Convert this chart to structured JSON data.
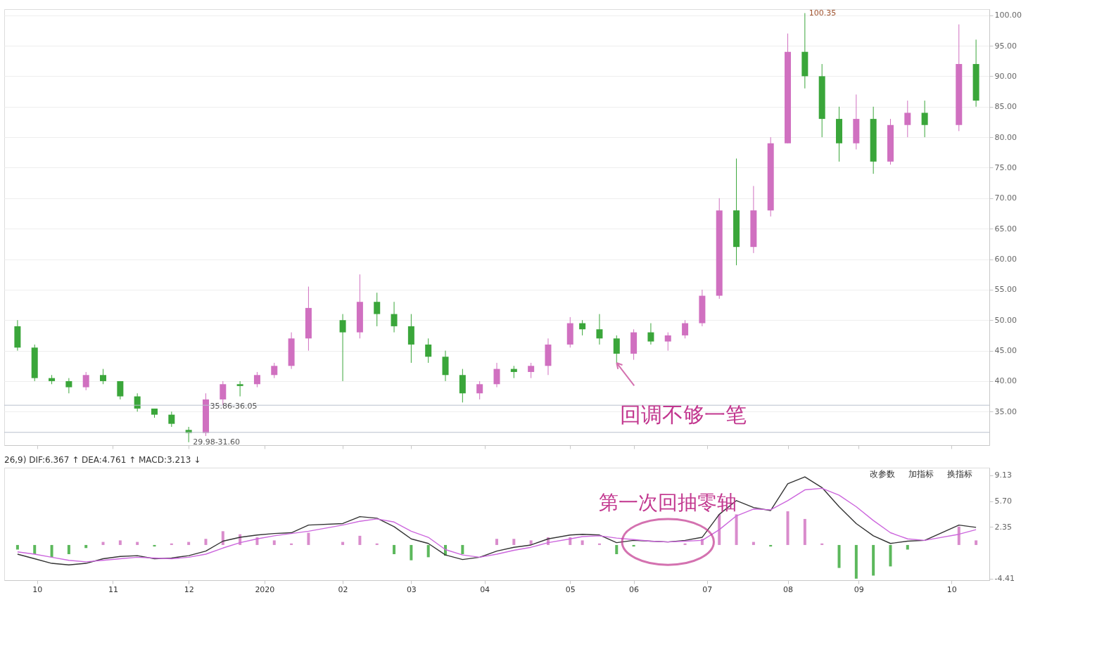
{
  "chart_data": [
    {
      "type": "candlestick",
      "tick_labels": "y",
      "grid": "y",
      "xlim": [
        "2019-09-19",
        "2020-10-23"
      ],
      "xticks": [
        {
          "value": "2019-10-01",
          "label": null
        },
        {
          "value": "2019-11-01",
          "label": null
        },
        {
          "value": "2019-12-02",
          "label": null
        },
        {
          "value": "2020-01-02",
          "label": null
        },
        {
          "value": "2020-02-03",
          "label": null
        },
        {
          "value": "2020-03-02",
          "label": null
        },
        {
          "value": "2020-04-01",
          "label": null
        },
        {
          "value": "2020-05-06",
          "label": null
        },
        {
          "value": "2020-06-01",
          "label": null
        },
        {
          "value": "2020-07-01",
          "label": null
        },
        {
          "value": "2020-08-03",
          "label": null
        },
        {
          "value": "2020-09-01",
          "label": null
        },
        {
          "value": "2020-10-09",
          "label": null
        }
      ],
      "ylim": [
        29.5,
        101
      ],
      "yticks": [
        {
          "value": 35,
          "label": "35.00"
        },
        {
          "value": 40,
          "label": "40.00"
        },
        {
          "value": 45,
          "label": "45.00"
        },
        {
          "value": 50,
          "label": "50.00"
        },
        {
          "value": 55,
          "label": "55.00"
        },
        {
          "value": 60,
          "label": "60.00"
        },
        {
          "value": 65,
          "label": "65.00"
        },
        {
          "value": 70,
          "label": "70.00"
        },
        {
          "value": 75,
          "label": "75.00"
        },
        {
          "value": 80,
          "label": "80.00"
        },
        {
          "value": 85,
          "label": "85.00"
        },
        {
          "value": 90,
          "label": "90.00"
        },
        {
          "value": 95,
          "label": "95.00"
        },
        {
          "value": 100,
          "label": "100.00"
        }
      ],
      "ref_lines": [
        {
          "axis": "y",
          "value": 36.05,
          "color": "#b8c0cc"
        },
        {
          "axis": "y",
          "value": 31.6,
          "color": "#b8c0cc"
        }
      ],
      "annotations": [
        {
          "text": "100.35",
          "x": "2020-08-10",
          "y": 100.35
        },
        {
          "text": "35.86-36.05",
          "x": "2019-12-09",
          "y": 35.86
        },
        {
          "text": "29.98-31.60",
          "x": "2019-12-02",
          "y": 29.98
        },
        {
          "text": "回调不够一笔",
          "x": "2020-05-25",
          "y": 43
        }
      ],
      "series": [
        {
          "x": [
            "2019-09-23",
            "2019-09-30",
            "2019-10-07",
            "2019-10-14",
            "2019-10-21",
            "2019-10-28",
            "2019-11-04",
            "2019-11-11",
            "2019-11-18",
            "2019-11-25",
            "2019-12-02",
            "2019-12-09",
            "2019-12-16",
            "2019-12-23",
            "2019-12-30",
            "2020-01-06",
            "2020-01-13",
            "2020-01-20",
            "2020-02-03",
            "2020-02-10",
            "2020-02-17",
            "2020-02-24",
            "2020-03-02",
            "2020-03-09",
            "2020-03-16",
            "2020-03-23",
            "2020-03-30",
            "2020-04-06",
            "2020-04-13",
            "2020-04-20",
            "2020-04-27",
            "2020-05-06",
            "2020-05-11",
            "2020-05-18",
            "2020-05-25",
            "2020-06-01",
            "2020-06-08",
            "2020-06-15",
            "2020-06-22",
            "2020-06-29",
            "2020-07-06",
            "2020-07-13",
            "2020-07-20",
            "2020-07-27",
            "2020-08-03",
            "2020-08-10",
            "2020-08-17",
            "2020-08-24",
            "2020-08-31",
            "2020-09-07",
            "2020-09-14",
            "2020-09-21",
            "2020-09-28",
            "2020-10-12",
            "2020-10-19"
          ],
          "ohlc": [
            [
              49,
              50,
              45,
              45.5
            ],
            [
              45.5,
              46,
              40,
              40.5
            ],
            [
              40.5,
              41,
              39.5,
              40
            ],
            [
              40,
              40.5,
              38,
              39
            ],
            [
              39,
              41.5,
              38.5,
              41
            ],
            [
              41,
              42,
              39.5,
              40
            ],
            [
              40,
              40,
              37,
              37.5
            ],
            [
              37.5,
              38,
              35,
              35.5
            ],
            [
              35.5,
              35.5,
              34,
              34.5
            ],
            [
              34.5,
              35,
              32.5,
              33
            ],
            [
              32,
              32.5,
              29.98,
              31.5
            ],
            [
              31.5,
              38,
              31,
              37
            ],
            [
              37,
              40,
              36,
              39.5
            ],
            [
              39.5,
              40,
              37.5,
              39.2
            ],
            [
              39.5,
              41.5,
              39,
              41
            ],
            [
              41,
              43,
              40.5,
              42.5
            ],
            [
              42.5,
              48,
              42,
              47
            ],
            [
              47,
              55.5,
              45,
              52
            ],
            [
              50,
              51,
              40,
              48
            ],
            [
              48,
              57.5,
              47,
              53
            ],
            [
              53,
              54.5,
              49,
              51
            ],
            [
              51,
              53,
              48,
              49
            ],
            [
              49,
              51,
              43,
              46
            ],
            [
              46,
              47,
              43,
              44
            ],
            [
              44,
              45,
              40,
              41
            ],
            [
              41,
              42,
              36.5,
              38
            ],
            [
              38,
              40,
              37,
              39.5
            ],
            [
              39.5,
              43,
              39,
              42
            ],
            [
              42,
              42.5,
              40.5,
              41.5
            ],
            [
              41.5,
              43,
              40.5,
              42.5
            ],
            [
              42.5,
              47,
              41,
              46
            ],
            [
              46,
              50.5,
              45.5,
              49.5
            ],
            [
              49.5,
              50,
              47.5,
              48.5
            ],
            [
              48.5,
              51,
              46,
              47
            ],
            [
              47,
              47.5,
              43,
              44.5
            ],
            [
              44.5,
              48.5,
              43.5,
              48
            ],
            [
              48,
              49.5,
              46,
              46.5
            ],
            [
              46.5,
              48,
              45,
              47.5
            ],
            [
              47.5,
              50,
              47,
              49.5
            ],
            [
              49.5,
              55,
              49,
              54
            ],
            [
              54,
              70,
              53.5,
              68
            ],
            [
              68,
              76.5,
              59,
              62
            ],
            [
              62,
              72,
              61,
              68
            ],
            [
              68,
              80,
              67,
              79
            ],
            [
              79,
              97,
              79,
              94
            ],
            [
              94,
              100.35,
              88,
              90
            ],
            [
              90,
              92,
              80,
              83
            ],
            [
              83,
              85,
              76,
              79
            ],
            [
              79,
              87,
              78,
              83
            ],
            [
              83,
              85,
              74,
              76
            ],
            [
              76,
              83,
              75.5,
              82
            ],
            [
              82,
              86,
              80,
              84
            ],
            [
              84,
              86,
              80,
              82
            ],
            [
              82,
              98.5,
              81,
              92
            ],
            [
              92,
              96,
              85,
              86
            ]
          ],
          "colors": [
            "#3aa63a",
            "#3aa63a",
            "#3aa63a",
            "#3aa63a",
            "#d070c0",
            "#3aa63a",
            "#3aa63a",
            "#3aa63a",
            "#3aa63a",
            "#3aa63a",
            "#3aa63a",
            "#d070c0",
            "#d070c0",
            "#3aa63a",
            "#d070c0",
            "#d070c0",
            "#d070c0",
            "#d070c0",
            "#3aa63a",
            "#d070c0",
            "#3aa63a",
            "#3aa63a",
            "#3aa63a",
            "#3aa63a",
            "#3aa63a",
            "#3aa63a",
            "#d070c0",
            "#d070c0",
            "#3aa63a",
            "#d070c0",
            "#d070c0",
            "#d070c0",
            "#3aa63a",
            "#3aa63a",
            "#3aa63a",
            "#d070c0",
            "#3aa63a",
            "#d070c0",
            "#d070c0",
            "#d070c0",
            "#d070c0",
            "#3aa63a",
            "#d070c0",
            "#d070c0",
            "#d070c0",
            "#3aa63a",
            "#3aa63a",
            "#3aa63a",
            "#d070c0",
            "#3aa63a",
            "#d070c0",
            "#d070c0",
            "#3aa63a",
            "#d070c0",
            "#3aa63a"
          ]
        }
      ]
    },
    {
      "type": "line",
      "title": "26,9) DIF:6.367 ↑ DEA:4.761 ↑ MACD:3.213 ↓",
      "marker": "none",
      "line_style": "solid",
      "x": [
        "2019-09-23",
        "2019-09-30",
        "2019-10-07",
        "2019-10-14",
        "2019-10-21",
        "2019-10-28",
        "2019-11-04",
        "2019-11-11",
        "2019-11-18",
        "2019-11-25",
        "2019-12-02",
        "2019-12-09",
        "2019-12-16",
        "2019-12-23",
        "2019-12-30",
        "2020-01-06",
        "2020-01-13",
        "2020-01-20",
        "2020-02-03",
        "2020-02-10",
        "2020-02-17",
        "2020-02-24",
        "2020-03-02",
        "2020-03-09",
        "2020-03-16",
        "2020-03-23",
        "2020-03-30",
        "2020-04-06",
        "2020-04-13",
        "2020-04-20",
        "2020-04-27",
        "2020-05-06",
        "2020-05-11",
        "2020-05-18",
        "2020-05-25",
        "2020-06-01",
        "2020-06-08",
        "2020-06-15",
        "2020-06-22",
        "2020-06-29",
        "2020-07-06",
        "2020-07-13",
        "2020-07-20",
        "2020-07-27",
        "2020-08-03",
        "2020-08-10",
        "2020-08-17",
        "2020-08-24",
        "2020-08-31",
        "2020-09-07",
        "2020-09-14",
        "2020-09-21",
        "2020-09-28",
        "2020-10-12",
        "2020-10-19"
      ],
      "xlim": [
        "2019-09-19",
        "2020-10-23"
      ],
      "xticks": [
        {
          "value": "2019-10-01",
          "label": "10"
        },
        {
          "value": "2019-11-01",
          "label": "11"
        },
        {
          "value": "2019-12-02",
          "label": "12"
        },
        {
          "value": "2020-01-02",
          "label": "2020"
        },
        {
          "value": "2020-02-03",
          "label": "02"
        },
        {
          "value": "2020-03-02",
          "label": "03"
        },
        {
          "value": "2020-04-01",
          "label": "04"
        },
        {
          "value": "2020-05-06",
          "label": "05"
        },
        {
          "value": "2020-06-01",
          "label": "06"
        },
        {
          "value": "2020-07-01",
          "label": "07"
        },
        {
          "value": "2020-08-03",
          "label": "08"
        },
        {
          "value": "2020-09-01",
          "label": "09"
        },
        {
          "value": "2020-10-09",
          "label": "10"
        }
      ],
      "ylim": [
        -4.6,
        10.1
      ],
      "yticks": [
        -4.41,
        2.35,
        {
          "value": 5.7,
          "label": "5.70"
        },
        9.13
      ],
      "annotations": [
        "改参数",
        "加指标",
        "换指标",
        {
          "text": "第一次回抽零轴",
          "x": "2020-06-15",
          "y": 0.4
        }
      ],
      "series": [
        {
          "type": "bar",
          "values": [
            -0.6,
            -1.2,
            -1.6,
            -1.2,
            -0.4,
            0.4,
            0.6,
            0.4,
            -0.2,
            0.2,
            0.4,
            0.8,
            1.8,
            1.4,
            1.0,
            0.6,
            0.2,
            1.6,
            0.4,
            1.2,
            0.2,
            -1.2,
            -2.0,
            -1.6,
            -1.4,
            -1.2,
            0.0,
            0.8,
            0.8,
            0.6,
            1.0,
            1.0,
            0.6,
            0.2,
            -1.2,
            -0.2,
            0.0,
            0.0,
            0.2,
            0.8,
            4.0,
            4.0,
            0.4,
            -0.2,
            4.4,
            3.4,
            0.2,
            -3.0,
            -4.4,
            -4.0,
            -2.8,
            -0.6,
            0.0,
            2.4,
            0.6
          ],
          "colors": [
            "#5cb85c",
            "#5cb85c",
            "#5cb85c",
            "#5cb85c",
            "#5cb85c",
            "#d98ccc",
            "#d98ccc",
            "#d98ccc",
            "#5cb85c",
            "#d98ccc",
            "#d98ccc",
            "#d98ccc",
            "#d98ccc",
            "#d98ccc",
            "#d98ccc",
            "#d98ccc",
            "#d98ccc",
            "#d98ccc",
            "#d98ccc",
            "#d98ccc",
            "#d98ccc",
            "#5cb85c",
            "#5cb85c",
            "#5cb85c",
            "#5cb85c",
            "#5cb85c",
            "#d98ccc",
            "#d98ccc",
            "#d98ccc",
            "#d98ccc",
            "#d98ccc",
            "#d98ccc",
            "#d98ccc",
            "#d98ccc",
            "#5cb85c",
            "#5cb85c",
            "#d98ccc",
            "#d98ccc",
            "#d98ccc",
            "#d98ccc",
            "#d98ccc",
            "#d98ccc",
            "#d98ccc",
            "#5cb85c",
            "#d98ccc",
            "#d98ccc",
            "#d98ccc",
            "#5cb85c",
            "#5cb85c",
            "#5cb85c",
            "#5cb85c",
            "#5cb85c",
            "#d98ccc",
            "#d98ccc",
            "#d98ccc"
          ]
        },
        {
          "color": "#333333",
          "values": [
            -1.2,
            -1.8,
            -2.4,
            -2.6,
            -2.4,
            -1.8,
            -1.5,
            -1.4,
            -1.8,
            -1.7,
            -1.4,
            -0.8,
            0.5,
            1.0,
            1.3,
            1.5,
            1.6,
            2.6,
            2.8,
            3.7,
            3.5,
            2.4,
            0.8,
            0.2,
            -1.3,
            -1.9,
            -1.6,
            -0.8,
            -0.3,
            0.0,
            0.8,
            1.3,
            1.4,
            1.3,
            0.3,
            0.6,
            0.5,
            0.4,
            0.6,
            1.0,
            4.0,
            5.8,
            4.9,
            4.5,
            8.0,
            8.9,
            7.5,
            5.0,
            2.8,
            1.2,
            0.2,
            0.5,
            0.6,
            2.6,
            2.3
          ]
        },
        {
          "color": "#cc66dd",
          "values": [
            -0.9,
            -1.2,
            -1.6,
            -2.0,
            -2.2,
            -2.0,
            -1.8,
            -1.6,
            -1.7,
            -1.8,
            -1.6,
            -1.2,
            -0.4,
            0.3,
            0.8,
            1.2,
            1.5,
            1.8,
            2.6,
            3.1,
            3.4,
            3.0,
            1.8,
            1.0,
            -0.6,
            -1.3,
            -1.6,
            -1.2,
            -0.7,
            -0.3,
            0.3,
            0.8,
            1.1,
            1.2,
            0.9,
            0.7,
            0.5,
            0.4,
            0.5,
            0.6,
            2.0,
            3.8,
            4.7,
            4.6,
            5.8,
            7.2,
            7.4,
            6.5,
            5.0,
            3.2,
            1.6,
            0.8,
            0.6,
            1.4,
            2.0
          ]
        }
      ]
    }
  ]
}
